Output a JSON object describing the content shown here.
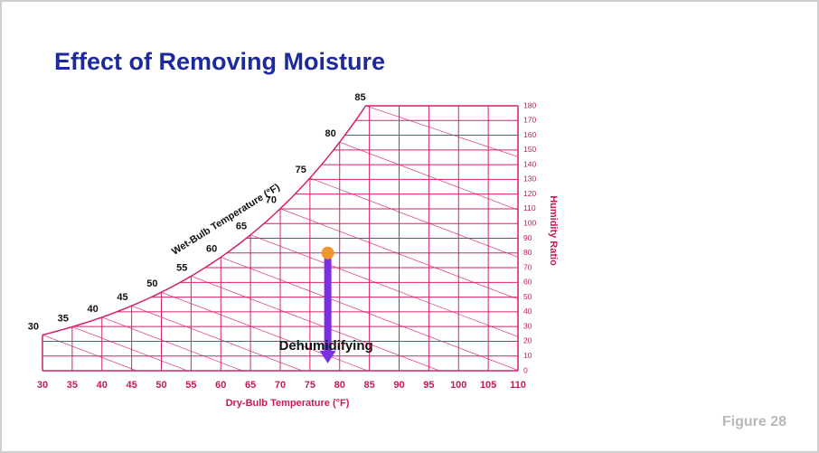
{
  "slide": {
    "title": "Effect of Removing Moisture",
    "figure_label": "Figure 28"
  },
  "chart_data": {
    "type": "psychrometric",
    "xlabel": "Dry-Bulb Temperature (°F)",
    "y2label": "Humidity Ratio",
    "wet_bulb_label": "Wet-Bulb Temperature (°F)",
    "xlim": [
      30,
      110
    ],
    "xticks": [
      30,
      35,
      40,
      45,
      50,
      55,
      60,
      65,
      70,
      75,
      80,
      85,
      90,
      95,
      100,
      105,
      110
    ],
    "y2lim": [
      0,
      180
    ],
    "y2ticks": [
      0,
      10,
      20,
      30,
      40,
      50,
      60,
      70,
      80,
      90,
      100,
      110,
      120,
      130,
      140,
      150,
      160,
      170,
      180
    ],
    "wet_bulb_ticks": [
      30,
      35,
      40,
      45,
      50,
      55,
      60,
      65,
      70,
      75,
      80,
      85
    ],
    "color": "#d4206c",
    "process": {
      "annotation": "Dehumidifying",
      "x": 78,
      "start": 80,
      "end": 5,
      "point_color": "#f0962c",
      "arrow_color": "#7a2fe0"
    }
  }
}
